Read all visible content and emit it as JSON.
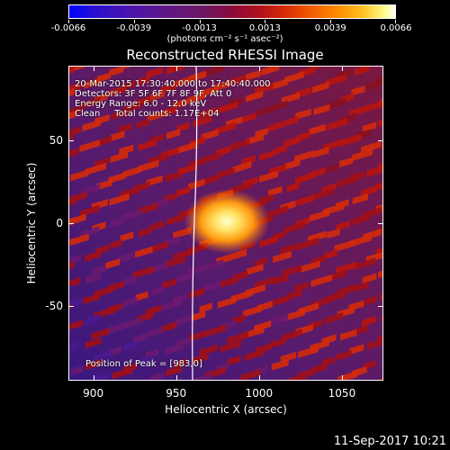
{
  "colorbar": {
    "ticks": [
      "-0.0066",
      "-0.0039",
      "-0.0013",
      "0.0013",
      "0.0039",
      "0.0066"
    ],
    "units_label": "(photons cm⁻² s⁻¹ asec⁻²)"
  },
  "title": "Reconstructed RHESSI Image",
  "info": {
    "line1": "20-Mar-2015 17:30:40.000 to 17:40:40.000",
    "line2": "Detectors: 3F 5F 6F 7F 8F 9F, Att 0",
    "line3": "Energy Range: 6.0 - 12.0 keV",
    "line4": "Clean     Total counts: 1.17E+04"
  },
  "peak_label": "Position of Peak = [983,0]",
  "axes": {
    "xlabel": "Heliocentric X (arcsec)",
    "ylabel": "Heliocentric Y (arcsec)",
    "x_ticks": [
      "900",
      "950",
      "1000",
      "1050"
    ],
    "y_ticks": [
      "50",
      "0",
      "-50"
    ],
    "x_range": [
      885,
      1075
    ],
    "y_range": [
      -95,
      95
    ]
  },
  "timestamp": "11-Sep-2017 10:21",
  "colors": {
    "peak": "#ffff60",
    "background_low": "#4a1a8a",
    "background_high": "#c01010",
    "limb": "#ffffff"
  }
}
